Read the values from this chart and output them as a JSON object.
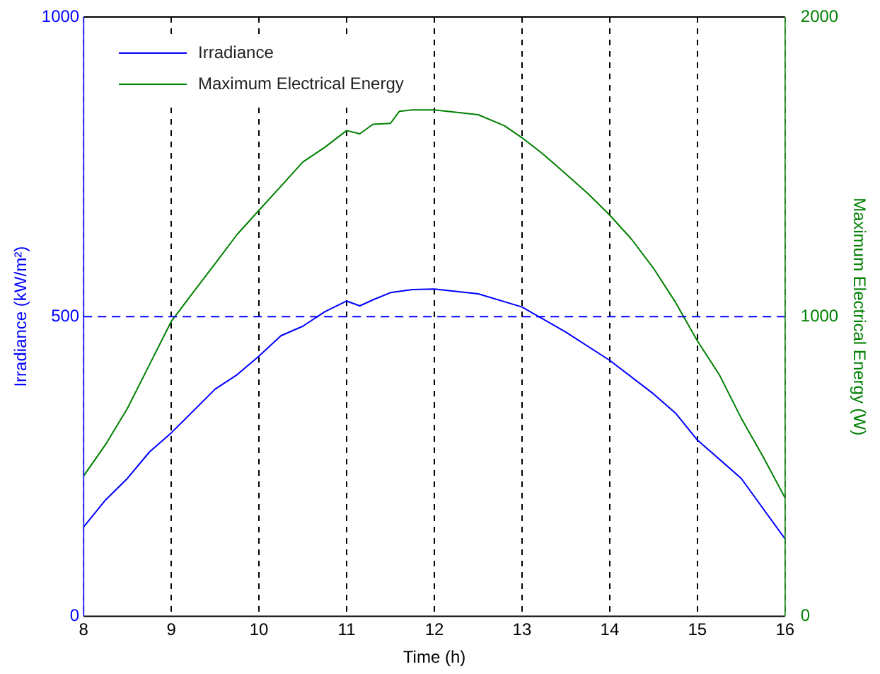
{
  "chart_data": {
    "type": "line",
    "xlabel": "Time (h)",
    "ylabel": "Irradiance (kW/m²)",
    "y2label": "Maximum Electrical Energy (W)",
    "xlim": [
      8,
      16
    ],
    "xticks": [
      8,
      9,
      10,
      11,
      12,
      13,
      14,
      15,
      16
    ],
    "ylim": [
      0,
      1000
    ],
    "yticks": [
      0,
      500,
      1000
    ],
    "y2lim": [
      0,
      2000
    ],
    "y2ticks": [
      0,
      1000,
      2000
    ],
    "grid": "x",
    "ref_lines": [
      {
        "axis": "y",
        "value": 500,
        "color": "#0000ff",
        "line_style": "dashed"
      }
    ],
    "legend": "top left",
    "line_style": "solid",
    "marker": "none",
    "series": [
      {
        "name": "Irradiance",
        "color": "#0000ff",
        "x": [
          8,
          8.25,
          8.5,
          8.75,
          9,
          9.5,
          9.75,
          10,
          10.25,
          10.5,
          10.75,
          11,
          11.15,
          11.3,
          11.5,
          11.75,
          12,
          12.5,
          13,
          13.5,
          14,
          14.5,
          14.75,
          15,
          15.5,
          16
        ],
        "values": [
          149,
          194,
          230,
          274,
          306,
          379,
          403,
          434,
          468,
          484,
          508,
          526,
          518,
          528,
          540,
          545,
          546,
          538,
          516,
          474,
          427,
          371,
          339,
          294,
          230,
          129
        ]
      },
      {
        "name": "Maximum Electrical Energy",
        "color": "#008000",
        "axis": "y2",
        "x": [
          8,
          8.25,
          8.5,
          8.75,
          9,
          9.25,
          9.5,
          9.75,
          10,
          10.25,
          10.5,
          10.75,
          11,
          11.15,
          11.3,
          11.5,
          11.6,
          11.75,
          12,
          12.5,
          12.8,
          13,
          13.25,
          13.5,
          13.75,
          14,
          14.25,
          14.5,
          14.75,
          15,
          15.25,
          15.5,
          15.75,
          16
        ],
        "values": [
          468,
          573,
          694,
          839,
          984,
          1081,
          1177,
          1274,
          1355,
          1435,
          1516,
          1565,
          1621,
          1610,
          1642,
          1645,
          1685,
          1690,
          1690,
          1674,
          1637,
          1597,
          1540,
          1476,
          1411,
          1339,
          1258,
          1161,
          1048,
          919,
          806,
          661,
          532,
          395
        ]
      }
    ]
  }
}
